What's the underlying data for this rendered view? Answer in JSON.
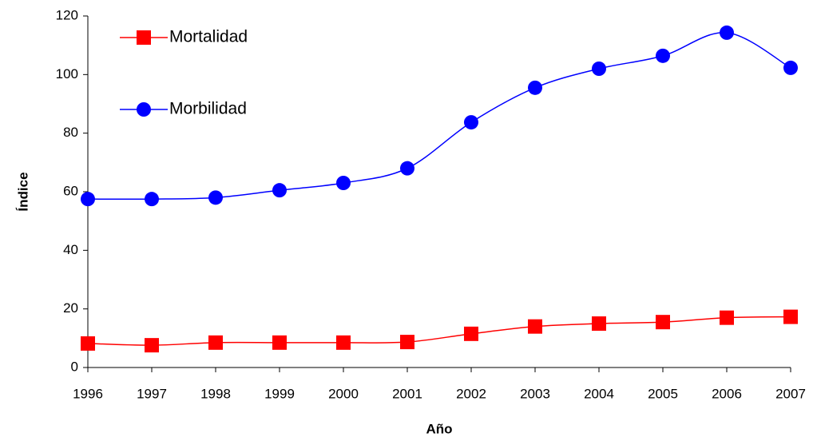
{
  "chart_data": {
    "type": "line",
    "x_label": "Año",
    "y_label": "Índice",
    "x": [
      1996,
      1997,
      1998,
      1999,
      2000,
      2001,
      2002,
      2003,
      2004,
      2005,
      2006,
      2007
    ],
    "xlim": [
      1996,
      2007
    ],
    "xticks": [
      1996,
      1997,
      1998,
      1999,
      2000,
      2001,
      2002,
      2003,
      2004,
      2005,
      2006,
      2007
    ],
    "ylim": [
      0,
      120
    ],
    "yticks": [
      0,
      20,
      40,
      60,
      80,
      100,
      120
    ],
    "grid": false,
    "legend": "top-left",
    "series": [
      {
        "name": "Mortalidad",
        "color": "#ff0000",
        "marker": "square",
        "values": [
          8.2,
          7.6,
          8.5,
          8.5,
          8.5,
          8.7,
          11.5,
          14,
          15,
          15.5,
          17,
          17.3
        ]
      },
      {
        "name": "Morbilidad",
        "color": "#0000ff",
        "marker": "circle",
        "values": [
          57.5,
          57.5,
          58,
          60.5,
          63,
          68,
          83.7,
          95.5,
          102,
          106.4,
          114.3,
          102.3
        ]
      }
    ]
  }
}
